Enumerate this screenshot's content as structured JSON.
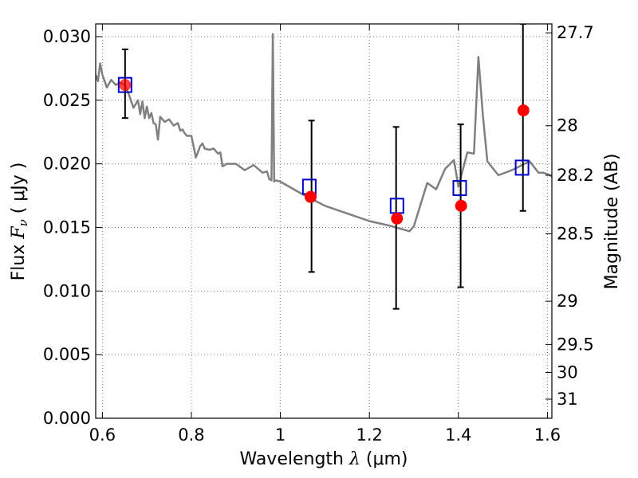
{
  "chart_data": {
    "type": "scatter",
    "xlabel": {
      "prefix": "Wavelength  ",
      "symbol": "λ",
      "unit": " (μm)"
    },
    "ylabel": {
      "prefix": "Flux  ",
      "symbol": "F",
      "subscript": "ν",
      "unit": " ( μJy )"
    },
    "ylabel_right": "Magnitude (AB)",
    "xlim": [
      0.585,
      1.61
    ],
    "ylim": [
      0.0,
      0.031
    ],
    "grid": true,
    "x_ticks": [
      0.6,
      0.8,
      1.0,
      1.2,
      1.4,
      1.6
    ],
    "x_tick_labels": [
      "0.6",
      "0.8",
      "1",
      "1.2",
      "1.4",
      "1.6"
    ],
    "y_ticks": [
      0.0,
      0.005,
      0.01,
      0.015,
      0.02,
      0.025,
      0.03
    ],
    "y_tick_labels": [
      "0.000",
      "0.005",
      "0.010",
      "0.015",
      "0.020",
      "0.025",
      "0.030"
    ],
    "right_ticks": [
      {
        "label": "27.7",
        "flux": 0.0303
      },
      {
        "label": "28",
        "flux": 0.023
      },
      {
        "label": "28.2",
        "flux": 0.0191
      },
      {
        "label": "28.5",
        "flux": 0.0145
      },
      {
        "label": "29",
        "flux": 0.0092
      },
      {
        "label": "29.5",
        "flux": 0.0058
      },
      {
        "label": "30",
        "flux": 0.0036
      },
      {
        "label": "31",
        "flux": 0.0015
      }
    ],
    "colors": {
      "model": "#808080",
      "observed": "#ff0000",
      "synthetic": "#0000cc",
      "errorbar": "#000000",
      "grid": "#808080"
    },
    "series": [
      {
        "kind": "line",
        "x": [
          0.585,
          0.59,
          0.595,
          0.6,
          0.61,
          0.62,
          0.63,
          0.64,
          0.65,
          0.66,
          0.67,
          0.68,
          0.685,
          0.69,
          0.695,
          0.7,
          0.705,
          0.71,
          0.715,
          0.72,
          0.725,
          0.73,
          0.74,
          0.75,
          0.76,
          0.77,
          0.775,
          0.78,
          0.785,
          0.79,
          0.8,
          0.81,
          0.82,
          0.825,
          0.83,
          0.84,
          0.85,
          0.86,
          0.865,
          0.87,
          0.88,
          0.9,
          0.92,
          0.94,
          0.96,
          0.97,
          0.975,
          0.98,
          0.983,
          0.986,
          0.99,
          1.0,
          1.05,
          1.1,
          1.15,
          1.2,
          1.25,
          1.28,
          1.29,
          1.3,
          1.33,
          1.35,
          1.37,
          1.39,
          1.4,
          1.42,
          1.435,
          1.445,
          1.455,
          1.465,
          1.49,
          1.52,
          1.56,
          1.58,
          1.59,
          1.6,
          1.61
        ],
        "y": [
          0.027,
          0.0265,
          0.0279,
          0.027,
          0.026,
          0.0266,
          0.0262,
          0.0264,
          0.0262,
          0.0254,
          0.0244,
          0.025,
          0.0239,
          0.0249,
          0.0236,
          0.0245,
          0.0236,
          0.024,
          0.0232,
          0.0231,
          0.0219,
          0.0237,
          0.0233,
          0.0235,
          0.023,
          0.0232,
          0.0226,
          0.0227,
          0.0224,
          0.0222,
          0.0222,
          0.0205,
          0.0214,
          0.0216,
          0.0212,
          0.0211,
          0.0212,
          0.0208,
          0.0209,
          0.0198,
          0.02,
          0.02,
          0.0195,
          0.0199,
          0.0193,
          0.0194,
          0.0188,
          0.0187,
          0.0302,
          0.0186,
          0.0187,
          0.0186,
          0.0176,
          0.0167,
          0.0161,
          0.0155,
          0.0151,
          0.0148,
          0.0147,
          0.0151,
          0.0185,
          0.018,
          0.0196,
          0.0203,
          0.0182,
          0.0209,
          0.0208,
          0.0284,
          0.0238,
          0.0202,
          0.0191,
          0.0195,
          0.0202,
          0.0193,
          0.0193,
          0.0192,
          0.019
        ]
      },
      {
        "kind": "errorbar",
        "x": [
          0.651,
          1.07,
          1.26,
          1.405,
          1.545
        ],
        "y": [
          0.0262,
          0.0175,
          0.0158,
          0.0167,
          0.0242
        ],
        "yerr_low": [
          0.0236,
          0.0115,
          0.0086,
          0.0103,
          0.0163
        ],
        "yerr_high": [
          0.029,
          0.0234,
          0.0229,
          0.0231,
          0.031
        ]
      },
      {
        "kind": "squares",
        "x": [
          0.651,
          1.065,
          1.262,
          1.403,
          1.543
        ],
        "y": [
          0.0262,
          0.0182,
          0.0167,
          0.0181,
          0.0197
        ]
      },
      {
        "kind": "points",
        "x": [
          0.651,
          1.068,
          1.262,
          1.406,
          1.546
        ],
        "y": [
          0.0262,
          0.0174,
          0.0157,
          0.0167,
          0.0242
        ]
      }
    ]
  }
}
